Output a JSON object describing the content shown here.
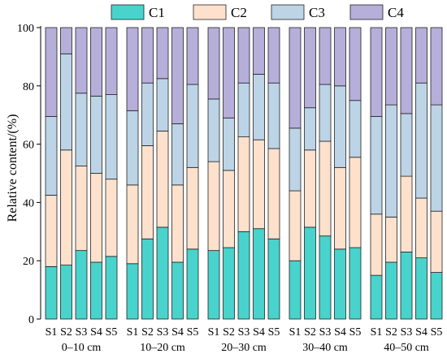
{
  "chart_data": {
    "type": "stacked-bar",
    "ylabel": "Relative content/(%)",
    "ylim": [
      0,
      100
    ],
    "yticks": [
      0,
      20,
      40,
      60,
      80,
      100
    ],
    "grid": false,
    "legend_position": "top",
    "colors": {
      "C1": "#48d3cc",
      "C2": "#fde1cc",
      "C3": "#bcd4e6",
      "C4": "#b6afda",
      "outline": "#222222"
    },
    "series_names": [
      "C1",
      "C2",
      "C3",
      "C4"
    ],
    "groups": [
      {
        "label": "0–10 cm",
        "samples": [
          {
            "name": "S1",
            "values": [
              18,
              24.5,
              27,
              30.5
            ]
          },
          {
            "name": "S2",
            "values": [
              18.5,
              39.5,
              33,
              9
            ]
          },
          {
            "name": "S3",
            "values": [
              23.5,
              29,
              25,
              22.5
            ]
          },
          {
            "name": "S4",
            "values": [
              19.5,
              30.5,
              26.5,
              23.5
            ]
          },
          {
            "name": "S5",
            "values": [
              21.5,
              26.5,
              29,
              23
            ]
          }
        ]
      },
      {
        "label": "10–20 cm",
        "samples": [
          {
            "name": "S1",
            "values": [
              19,
              27,
              25.5,
              28.5
            ]
          },
          {
            "name": "S2",
            "values": [
              27.5,
              32,
              21.5,
              19
            ]
          },
          {
            "name": "S3",
            "values": [
              31.5,
              33,
              18,
              17.5
            ]
          },
          {
            "name": "S4",
            "values": [
              19.5,
              26.5,
              21,
              33
            ]
          },
          {
            "name": "S5",
            "values": [
              24,
              28,
              28.5,
              19.5
            ]
          }
        ]
      },
      {
        "label": "20–30 cm",
        "samples": [
          {
            "name": "S1",
            "values": [
              23.5,
              30.5,
              21.5,
              24.5
            ]
          },
          {
            "name": "S2",
            "values": [
              24.5,
              26.5,
              18,
              31
            ]
          },
          {
            "name": "S3",
            "values": [
              30,
              32.5,
              18.5,
              19
            ]
          },
          {
            "name": "S4",
            "values": [
              31,
              30.5,
              22.5,
              16
            ]
          },
          {
            "name": "S5",
            "values": [
              27.5,
              31,
              22.5,
              19
            ]
          }
        ]
      },
      {
        "label": "30–40 cm",
        "samples": [
          {
            "name": "S1",
            "values": [
              20,
              24,
              21.5,
              34.5
            ]
          },
          {
            "name": "S2",
            "values": [
              31.5,
              26.5,
              14.5,
              27.5
            ]
          },
          {
            "name": "S3",
            "values": [
              28.5,
              32.5,
              19.5,
              19.5
            ]
          },
          {
            "name": "S4",
            "values": [
              24,
              28,
              28,
              20
            ]
          },
          {
            "name": "S5",
            "values": [
              24.5,
              31,
              19.5,
              25
            ]
          }
        ]
      },
      {
        "label": "40–50 cm",
        "samples": [
          {
            "name": "S1",
            "values": [
              15,
              21,
              33.5,
              30.5
            ]
          },
          {
            "name": "S2",
            "values": [
              19.5,
              15.5,
              38.5,
              26.5
            ]
          },
          {
            "name": "S3",
            "values": [
              23,
              26,
              21.5,
              29.5
            ]
          },
          {
            "name": "S4",
            "values": [
              21,
              20.5,
              39.5,
              19
            ]
          },
          {
            "name": "S5",
            "values": [
              16,
              21,
              36.5,
              26.5
            ]
          }
        ]
      }
    ]
  }
}
